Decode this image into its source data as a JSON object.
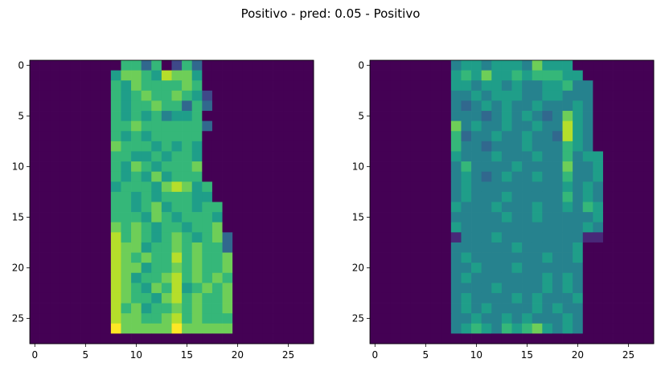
{
  "figure": {
    "title": "Positivo - pred: 0.05 - Positivo"
  },
  "colormap": [
    "#440154",
    "#482878",
    "#3e4989",
    "#31688e",
    "#26828e",
    "#1f9e89",
    "#35b779",
    "#6ece58",
    "#b5de2b",
    "#fde725"
  ],
  "chart_data": [
    {
      "type": "heatmap",
      "name": "left",
      "shape": [
        28,
        28
      ],
      "xticks": [
        0,
        5,
        10,
        15,
        20,
        25
      ],
      "yticks": [
        0,
        5,
        10,
        15,
        20,
        25
      ],
      "value_range": [
        0,
        1
      ],
      "rows": [
        "........AGGDG.CGD...........",
        "........FHHGFIHHF...........",
        "........GFHGGGGHG...........",
        "........GFGHGGHGFC..........",
        "........GFGGHGGDGD..........",
        "........GFGFGEFFG...........",
        "........GGHGGGGGGD..........",
        "........GFGFGGGGG...........",
        "........HGGGFGFGF...........",
        "........GGFFGFGGF...........",
        "........GFHGFGGGH...........",
        "........GFGFHFGGG...........",
        "........FGGGFHIHFG..........",
        "........GGFGFGGGFF..........",
        "........GGFGHFGGFGG.........",
        "........GGGFHGFGGGF.........",
        "........HGHGFGGFGGH.........",
        "........IGHGFGHGFGHD........",
        "........IHHFGGHGHGGD........",
        "........IHGHGGIGHGGH........",
        "........IHHFGGHGHGGH........",
        "........IHFGGHIGHGHG........",
        "........IHGFHGIFGHGH........",
        "........IHGGFHIGHGGH........",
        "........IGHFGGHGHGGH........",
        "........IHHGGHIGHGGG........",
        "........JHHHHHJHHHHH........",
        "............................"
      ]
    },
    {
      "type": "heatmap",
      "name": "right",
      "shape": [
        28,
        28
      ],
      "xticks": [
        0,
        5,
        10,
        15,
        20,
        25
      ],
      "yticks": [
        0,
        5,
        10,
        15,
        20,
        25
      ],
      "value_range": [
        0,
        1
      ],
      "rows": [
        "........EFFEFFFEHFFF........",
        "........FGFHFFGFGGGFF.......",
        "........FFEFFEFEEFFGEE......",
        "........EEFEFFFEEFFEEE......",
        "........EDEFEFEEFEEEFE......",
        "........EEEDEFEFEDEHFE......",
        "........HEFEEFEEFEEIFE......",
        "........GDEEFEEFEEDIFE......",
        "........GEEDEEEFEEEGFE......",
        "........FEEEFEEEFEEGEFF.....",
        "........EGEEEEFEEEEHEEF.....",
        "........EFEDEFEEFEEGEEF.....",
        "........EFEEEEEEEEEFEFE.....",
        "........EFEEEFEEEEEGEFE.....",
        "........FEEEFEEEFEEFEGF.....",
        "........EEEEEFEEFEEEEEF.....",
        "........FEEEEEEEEEEEEFE.....",
        "........BEEEFEEEEEEEEBB.....",
        "........EEEEEEFEEEEEF.......",
        "........EFEEEEEEEFEEF.......",
        "........EEFEEEFEEEEEE.......",
        "........EFEEEEEEEFEFE.......",
        "........EEEEFEEEEFEFE.......",
        "........EFEEEEFEFEEEF.......",
        "........EFEFEEEEFEFEE.......",
        "........EEFEEFEFEEEFE.......",
        "........EFGFEGFGHFEFE.......",
        "............................"
      ]
    }
  ]
}
